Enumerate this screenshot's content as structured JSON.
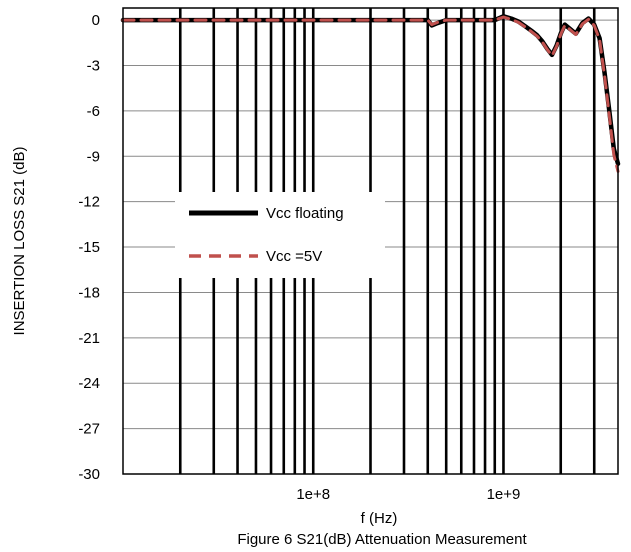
{
  "chart_data": {
    "type": "line",
    "xlabel": "f (Hz)",
    "ylabel": "INSERTION LOSS S21 (dB)",
    "caption": "Figure 6 S21(dB) Attenuation Measurement",
    "xscale": "log",
    "xlim": [
      10000000,
      4000000000
    ],
    "ylim": [
      -30,
      0.8
    ],
    "x_tick_labels": [
      {
        "value": 100000000,
        "label": "1e+8"
      },
      {
        "value": 1000000000,
        "label": "1e+9"
      }
    ],
    "y_ticks": [
      0,
      -3,
      -6,
      -9,
      -12,
      -15,
      -18,
      -21,
      -24,
      -27,
      -30
    ],
    "grid": true,
    "legend": {
      "position": "middle-left"
    },
    "series": [
      {
        "name": "Vcc floating",
        "color": "#000000",
        "dash": "solid",
        "x": [
          10000000,
          300000000,
          400000000,
          420000000,
          450000000,
          500000000,
          700000000,
          900000000,
          1000000000,
          1100000000,
          1200000000,
          1300000000,
          1400000000,
          1500000000,
          1600000000,
          1700000000,
          1800000000,
          1900000000,
          2000000000,
          2100000000,
          2200000000,
          2400000000,
          2600000000,
          2800000000,
          3000000000,
          3200000000,
          3400000000,
          3600000000,
          3800000000,
          4000000000
        ],
        "y": [
          0,
          0,
          0,
          -0.35,
          -0.2,
          0,
          0,
          0,
          0.25,
          0.1,
          -0.1,
          -0.4,
          -0.7,
          -1.0,
          -1.4,
          -1.9,
          -2.3,
          -1.7,
          -0.9,
          -0.3,
          -0.5,
          -0.9,
          -0.2,
          0.1,
          -0.3,
          -1.2,
          -3.5,
          -6.0,
          -8.5,
          -9.5
        ]
      },
      {
        "name": "Vcc =5V",
        "color": "#c0504d",
        "dash": "dashed",
        "x": [
          10000000,
          300000000,
          400000000,
          420000000,
          450000000,
          500000000,
          700000000,
          900000000,
          1000000000,
          1100000000,
          1200000000,
          1300000000,
          1400000000,
          1500000000,
          1600000000,
          1700000000,
          1800000000,
          1900000000,
          2000000000,
          2100000000,
          2200000000,
          2400000000,
          2600000000,
          2800000000,
          3000000000,
          3200000000,
          3400000000,
          3600000000,
          3800000000,
          4000000000
        ],
        "y": [
          0,
          0,
          0,
          -0.3,
          -0.15,
          0,
          0,
          0,
          0.2,
          0.05,
          -0.15,
          -0.45,
          -0.75,
          -1.05,
          -1.45,
          -1.95,
          -2.35,
          -1.75,
          -0.95,
          -0.35,
          -0.55,
          -0.95,
          -0.25,
          0.05,
          -0.35,
          -1.3,
          -3.7,
          -6.3,
          -8.9,
          -10.0
        ]
      }
    ]
  }
}
